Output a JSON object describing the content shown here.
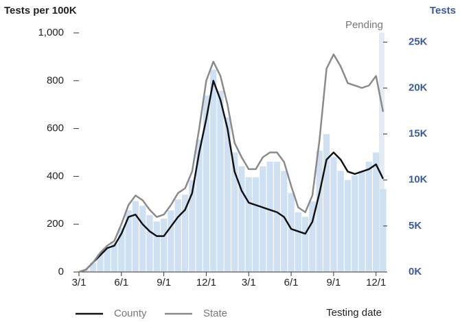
{
  "chart_data": {
    "type": "bar-line",
    "y_label": "Tests per 100K",
    "y2_label": "Tests",
    "x_label": "Testing date",
    "annotation": "Pending",
    "categories": [
      "3/1",
      null,
      null,
      null,
      null,
      null,
      "6/1",
      null,
      null,
      null,
      null,
      null,
      "9/1",
      null,
      null,
      null,
      null,
      null,
      "12/1",
      null,
      null,
      null,
      null,
      null,
      "3/1",
      null,
      null,
      null,
      null,
      null,
      "6/1",
      null,
      null,
      null,
      null,
      null,
      "9/1",
      null,
      null,
      null,
      null,
      null,
      "12/1",
      null
    ],
    "series": [
      {
        "name": "County",
        "color": "#111111",
        "values": [
          0,
          10,
          40,
          70,
          100,
          110,
          160,
          230,
          240,
          200,
          170,
          150,
          150,
          190,
          230,
          260,
          330,
          500,
          640,
          800,
          720,
          600,
          420,
          340,
          290,
          280,
          270,
          260,
          250,
          230,
          180,
          170,
          160,
          210,
          330,
          470,
          500,
          470,
          420,
          410,
          420,
          430,
          450,
          390
        ]
      },
      {
        "name": "State",
        "color": "#8a8a8a",
        "values": [
          0,
          10,
          40,
          80,
          110,
          130,
          200,
          280,
          320,
          300,
          260,
          230,
          240,
          280,
          330,
          350,
          420,
          600,
          800,
          880,
          820,
          700,
          540,
          480,
          430,
          430,
          480,
          500,
          500,
          460,
          360,
          270,
          250,
          320,
          550,
          850,
          910,
          860,
          790,
          780,
          770,
          780,
          820,
          670
        ]
      },
      {
        "color": "#cfe0f3",
        "axis": "y2",
        "values": [
          0,
          250,
          1000,
          1900,
          2600,
          3100,
          4800,
          6700,
          7700,
          7200,
          6200,
          5500,
          5800,
          6700,
          7900,
          8400,
          10000,
          14400,
          19200,
          22000,
          19700,
          16800,
          13000,
          11500,
          10300,
          10300,
          11500,
          12000,
          12000,
          11000,
          8600,
          6500,
          6000,
          7700,
          13200,
          15000,
          12500,
          11000,
          10000,
          10500,
          11000,
          12000,
          13000,
          9000
        ]
      }
    ],
    "ylim": [
      0,
      1000
    ],
    "yticks": [
      0,
      200,
      400,
      600,
      800,
      {
        "value": 1000,
        "label": "1,000"
      }
    ],
    "y2lim": [
      0,
      26000
    ],
    "y2ticks": [
      {
        "value": 0,
        "label": "0K"
      },
      {
        "value": 5000,
        "label": "5K"
      },
      {
        "value": 10000,
        "label": "10K"
      },
      {
        "value": 15000,
        "label": "15K"
      },
      {
        "value": 20000,
        "label": "20K"
      },
      {
        "value": 25000,
        "label": "25K"
      }
    ]
  }
}
